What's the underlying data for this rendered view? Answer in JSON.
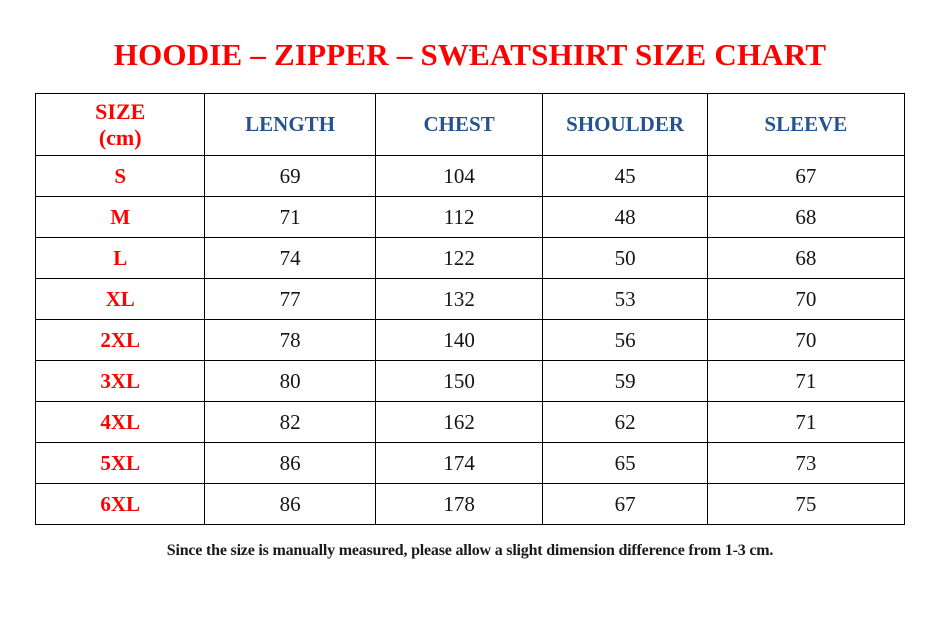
{
  "page": {
    "top_dot": ".",
    "title": "HOODIE – ZIPPER – SWEATSHIRT SIZE CHART",
    "footnote": "Since the size is manually measured, please allow a slight dimension difference from 1-3 cm."
  },
  "colors": {
    "title_red": "#fe0000",
    "size_label_red": "#fe0000",
    "header_blue": "#24538e",
    "body_text": "#151515",
    "border": "#000000",
    "background": "#ffffff"
  },
  "header_display": {
    "size_top": "SIZE",
    "size_bottom": "(cm)",
    "cols": [
      "LENGTH",
      "CHEST",
      "SHOULDER",
      "SLEEVE"
    ]
  },
  "chart_data": {
    "type": "table",
    "title": "HOODIE – ZIPPER – SWEATSHIRT SIZE CHART",
    "columns": [
      "SIZE (cm)",
      "LENGTH",
      "CHEST",
      "SHOULDER",
      "SLEEVE"
    ],
    "rows": [
      [
        "S",
        "69",
        "104",
        "45",
        "67"
      ],
      [
        "M",
        "71",
        "112",
        "48",
        "68"
      ],
      [
        "L",
        "74",
        "122",
        "50",
        "68"
      ],
      [
        "XL",
        "77",
        "132",
        "53",
        "70"
      ],
      [
        "2XL",
        "78",
        "140",
        "56",
        "70"
      ],
      [
        "3XL",
        "80",
        "150",
        "59",
        "71"
      ],
      [
        "4XL",
        "82",
        "162",
        "62",
        "71"
      ],
      [
        "5XL",
        "86",
        "174",
        "65",
        "73"
      ],
      [
        "6XL",
        "86",
        "178",
        "67",
        "75"
      ]
    ],
    "footnote": "Since the size is manually measured, please allow a slight dimension difference from 1-3 cm."
  }
}
